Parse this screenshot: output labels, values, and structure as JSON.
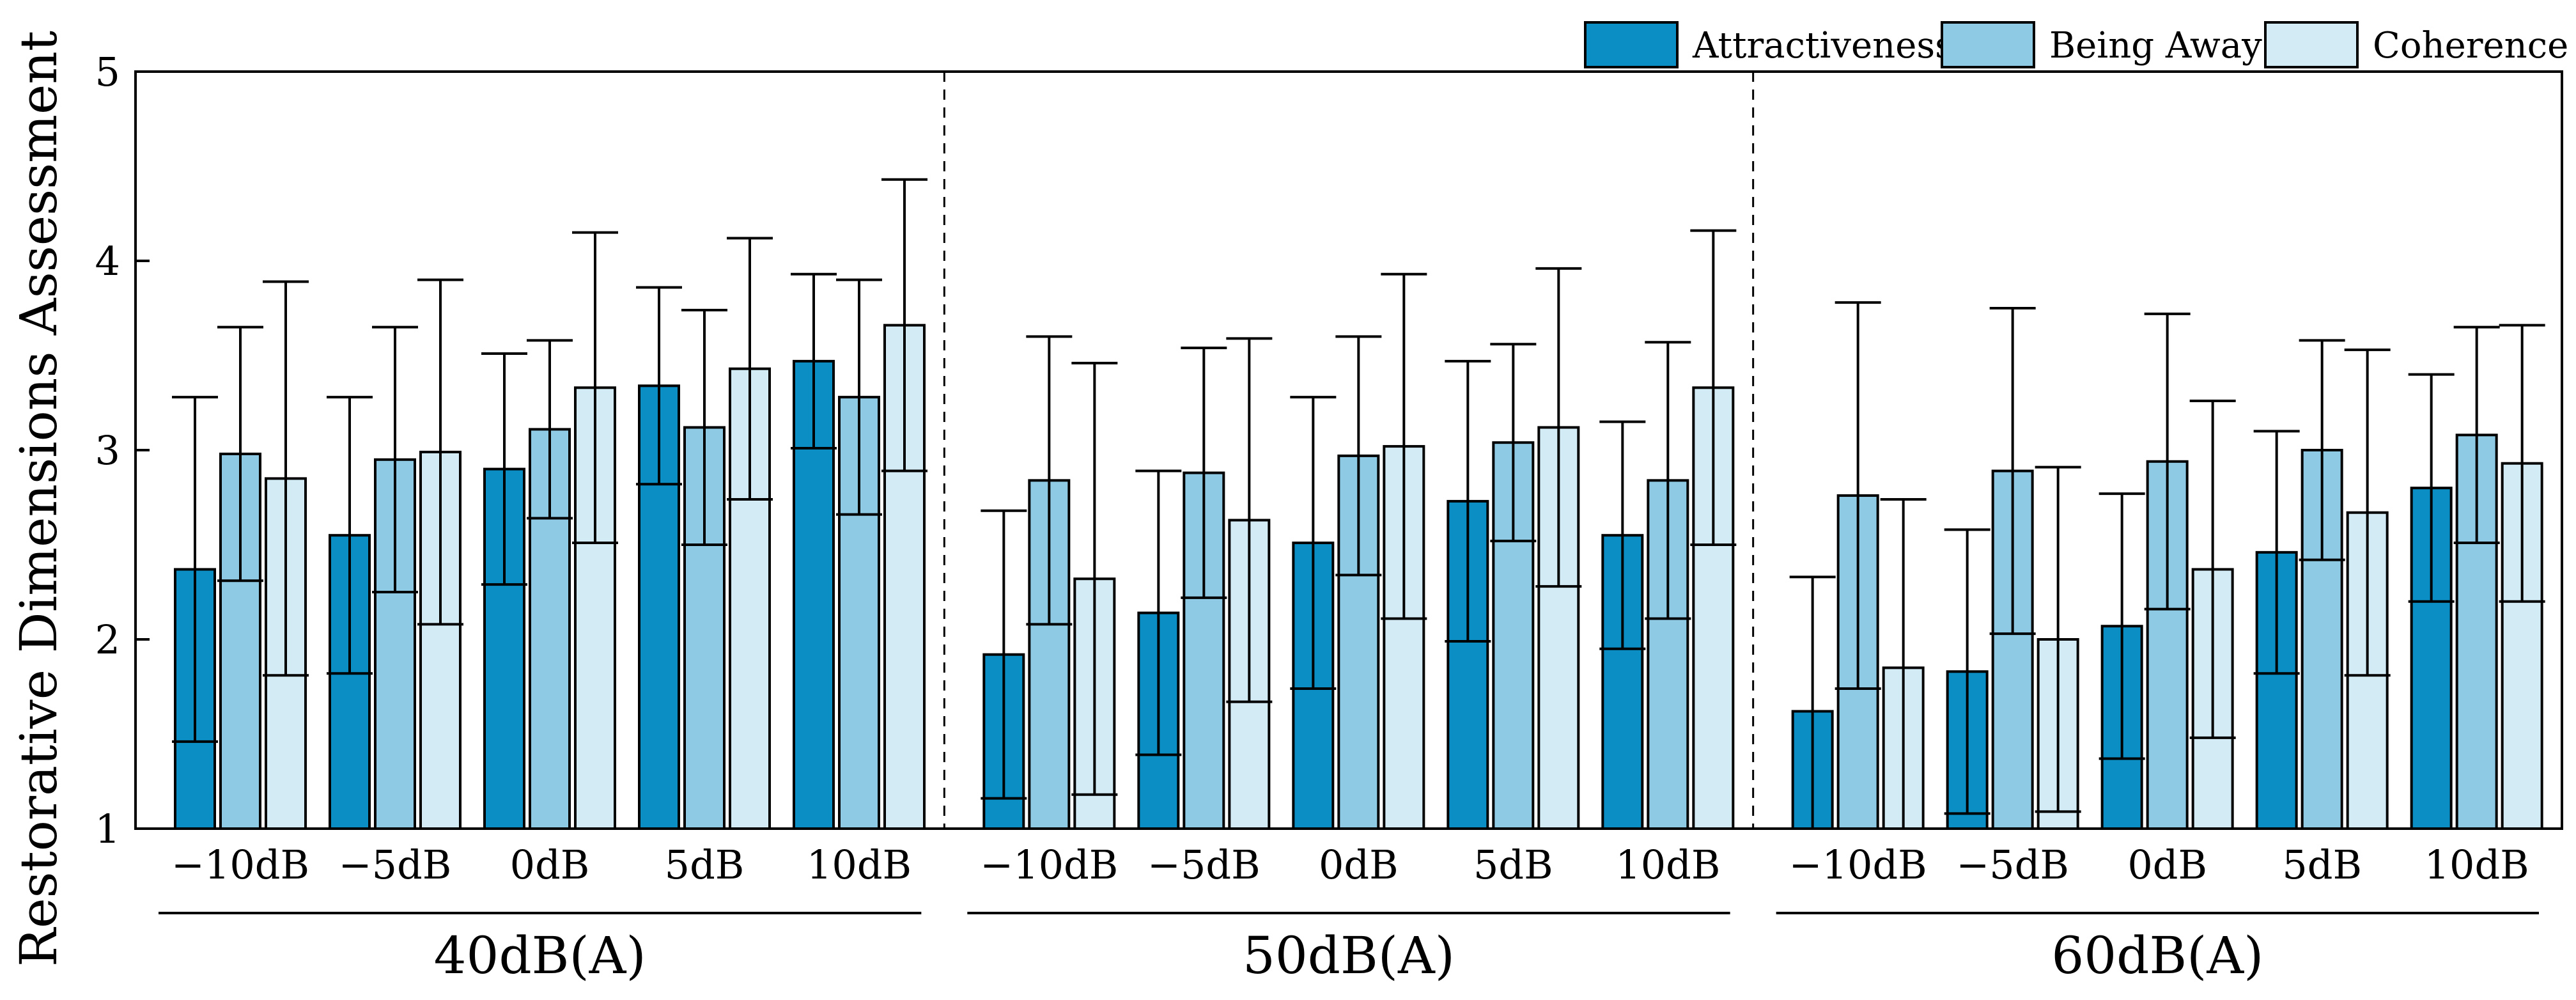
{
  "chart_data": {
    "type": "bar",
    "ylabel": "Restorative Dimensions Assessment",
    "ylim": [
      1,
      5
    ],
    "yticks": [
      "1",
      "2",
      "3",
      "4",
      "5"
    ],
    "grid": false,
    "legend_position": "top-right",
    "groups": [
      {
        "label": "40dB(A)",
        "categories": [
          "−10dB",
          "−5dB",
          "0dB",
          "5dB",
          "10dB"
        ]
      },
      {
        "label": "50dB(A)",
        "categories": [
          "−10dB",
          "−5dB",
          "0dB",
          "5dB",
          "10dB"
        ]
      },
      {
        "label": "60dB(A)",
        "categories": [
          "−10dB",
          "−5dB",
          "0dB",
          "5dB",
          "10dB"
        ]
      }
    ],
    "series": [
      {
        "name": "Attractiveness",
        "color": "#0b8ec4",
        "values": [
          2.37,
          2.55,
          2.9,
          3.34,
          3.47,
          1.92,
          2.14,
          2.51,
          2.73,
          2.55,
          1.62,
          1.83,
          2.07,
          2.46,
          2.8
        ],
        "error_low": [
          1.46,
          1.82,
          2.29,
          2.82,
          3.01,
          1.16,
          1.39,
          1.74,
          1.99,
          1.95,
          1.0,
          1.08,
          1.37,
          1.82,
          2.2
        ],
        "error_high": [
          3.28,
          3.28,
          3.51,
          3.86,
          3.93,
          2.68,
          2.89,
          3.28,
          3.47,
          3.15,
          2.33,
          2.58,
          2.77,
          3.1,
          3.4
        ]
      },
      {
        "name": "Being Away",
        "color": "#8ecae3",
        "values": [
          2.98,
          2.95,
          3.11,
          3.12,
          3.28,
          2.84,
          2.88,
          2.97,
          3.04,
          2.84,
          2.76,
          2.89,
          2.94,
          3.0,
          3.08
        ],
        "error_low": [
          2.31,
          2.25,
          2.64,
          2.5,
          2.66,
          2.08,
          2.22,
          2.34,
          2.52,
          2.11,
          1.74,
          2.03,
          2.16,
          2.42,
          2.51
        ],
        "error_high": [
          3.65,
          3.65,
          3.58,
          3.74,
          3.9,
          3.6,
          3.54,
          3.6,
          3.56,
          3.57,
          3.78,
          3.75,
          3.72,
          3.58,
          3.65
        ]
      },
      {
        "name": "Coherence",
        "color": "#d3ebf5",
        "values": [
          2.85,
          2.99,
          3.33,
          3.43,
          3.66,
          2.32,
          2.63,
          3.02,
          3.12,
          3.33,
          1.85,
          2.0,
          2.37,
          2.67,
          2.93
        ],
        "error_low": [
          1.81,
          2.08,
          2.51,
          2.74,
          2.89,
          1.18,
          1.67,
          2.11,
          2.28,
          2.5,
          1.0,
          1.09,
          1.48,
          1.81,
          2.2
        ],
        "error_high": [
          3.89,
          3.9,
          4.15,
          4.12,
          4.43,
          3.46,
          3.59,
          3.93,
          3.96,
          4.16,
          2.74,
          2.91,
          3.26,
          3.53,
          3.66
        ]
      }
    ]
  }
}
